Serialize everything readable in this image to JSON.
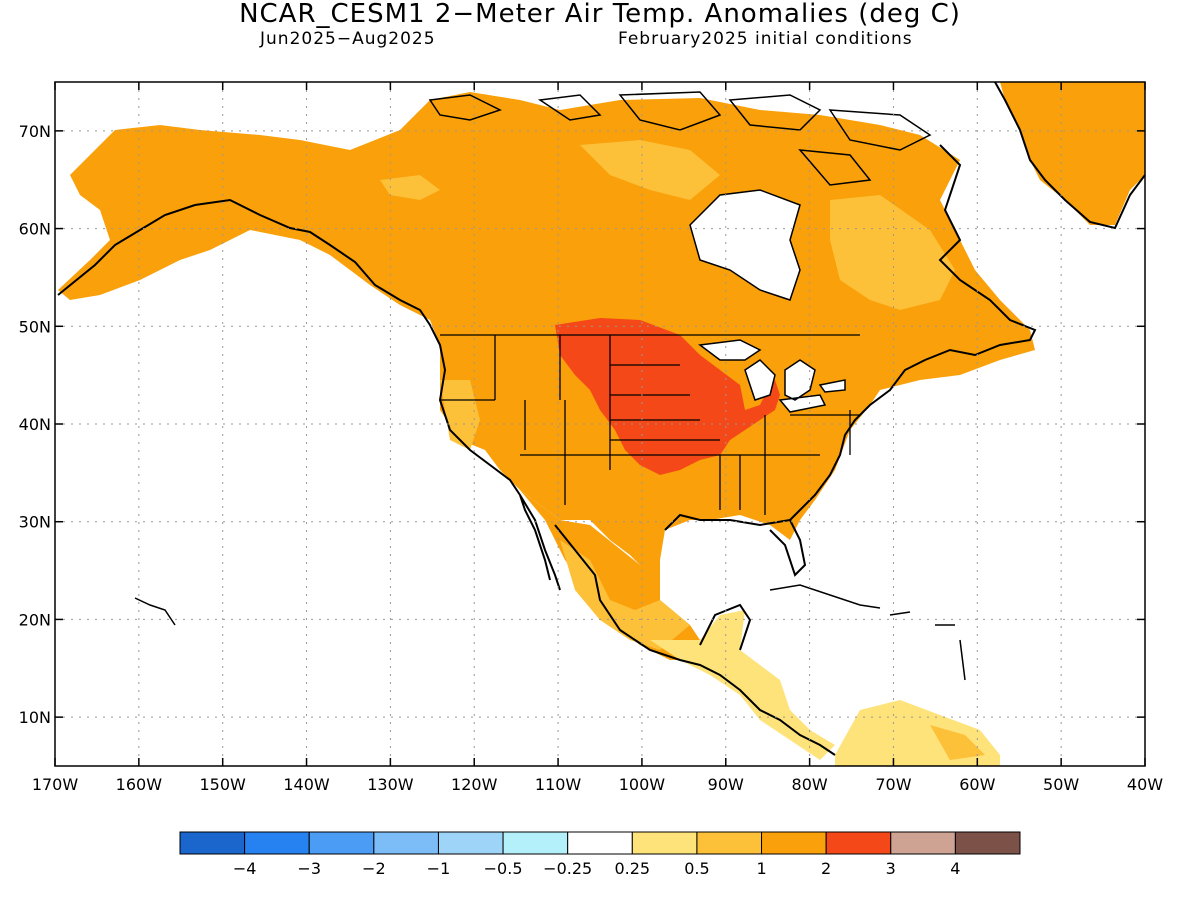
{
  "title": "NCAR_CESM1 2−Meter Air Temp. Anomalies (deg C)",
  "subtitle_period": "Jun2025−Aug2025",
  "subtitle_init": "February2025 initial conditions",
  "map": {
    "lat_labels": [
      "70N",
      "60N",
      "50N",
      "40N",
      "30N",
      "20N",
      "10N"
    ],
    "lat_values": [
      70,
      60,
      50,
      40,
      30,
      20,
      10
    ],
    "lon_labels": [
      "170W",
      "160W",
      "150W",
      "140W",
      "130W",
      "120W",
      "110W",
      "100W",
      "90W",
      "80W",
      "70W",
      "60W",
      "50W",
      "40W"
    ],
    "lon_values": [
      -170,
      -160,
      -150,
      -140,
      -130,
      -120,
      -110,
      -100,
      -90,
      -80,
      -70,
      -60,
      -50,
      -40
    ],
    "lon_range": [
      -170,
      -40
    ],
    "lat_range": [
      5,
      75
    ],
    "gridlines": true,
    "anomaly_regions": [
      {
        "category": "2 to 3",
        "description": "Central US (Dakotas, Nebraska, Minnesota, Iowa, Missouri, Kansas), Ohio River valley, Michigan"
      },
      {
        "category": "1 to 2",
        "description": "Alaska, most of Canada, western and southern US, northern Mexico, Greenland"
      },
      {
        "category": "0.5 to 1",
        "description": "Arctic islands, Labrador/Quebec patches, Baja and western Mexico coast, southern Mexico"
      },
      {
        "category": "0.25 to 0.5",
        "description": "Southern Mexico, Central America, northern South America coast"
      }
    ]
  },
  "colorbar": {
    "colors": [
      "#1a66cc",
      "#2682f0",
      "#4a9cf5",
      "#7cbcf7",
      "#9ed4f7",
      "#b4f0fa",
      "#ffffff",
      "#fee27a",
      "#fcc039",
      "#f9a00a",
      "#f54818",
      "#cea393",
      "#7c5248"
    ],
    "labels": [
      "−4",
      "−3",
      "−2",
      "−1",
      "−0.5",
      "−0.25",
      "0.25",
      "0.5",
      "1",
      "2",
      "3",
      "4"
    ]
  }
}
